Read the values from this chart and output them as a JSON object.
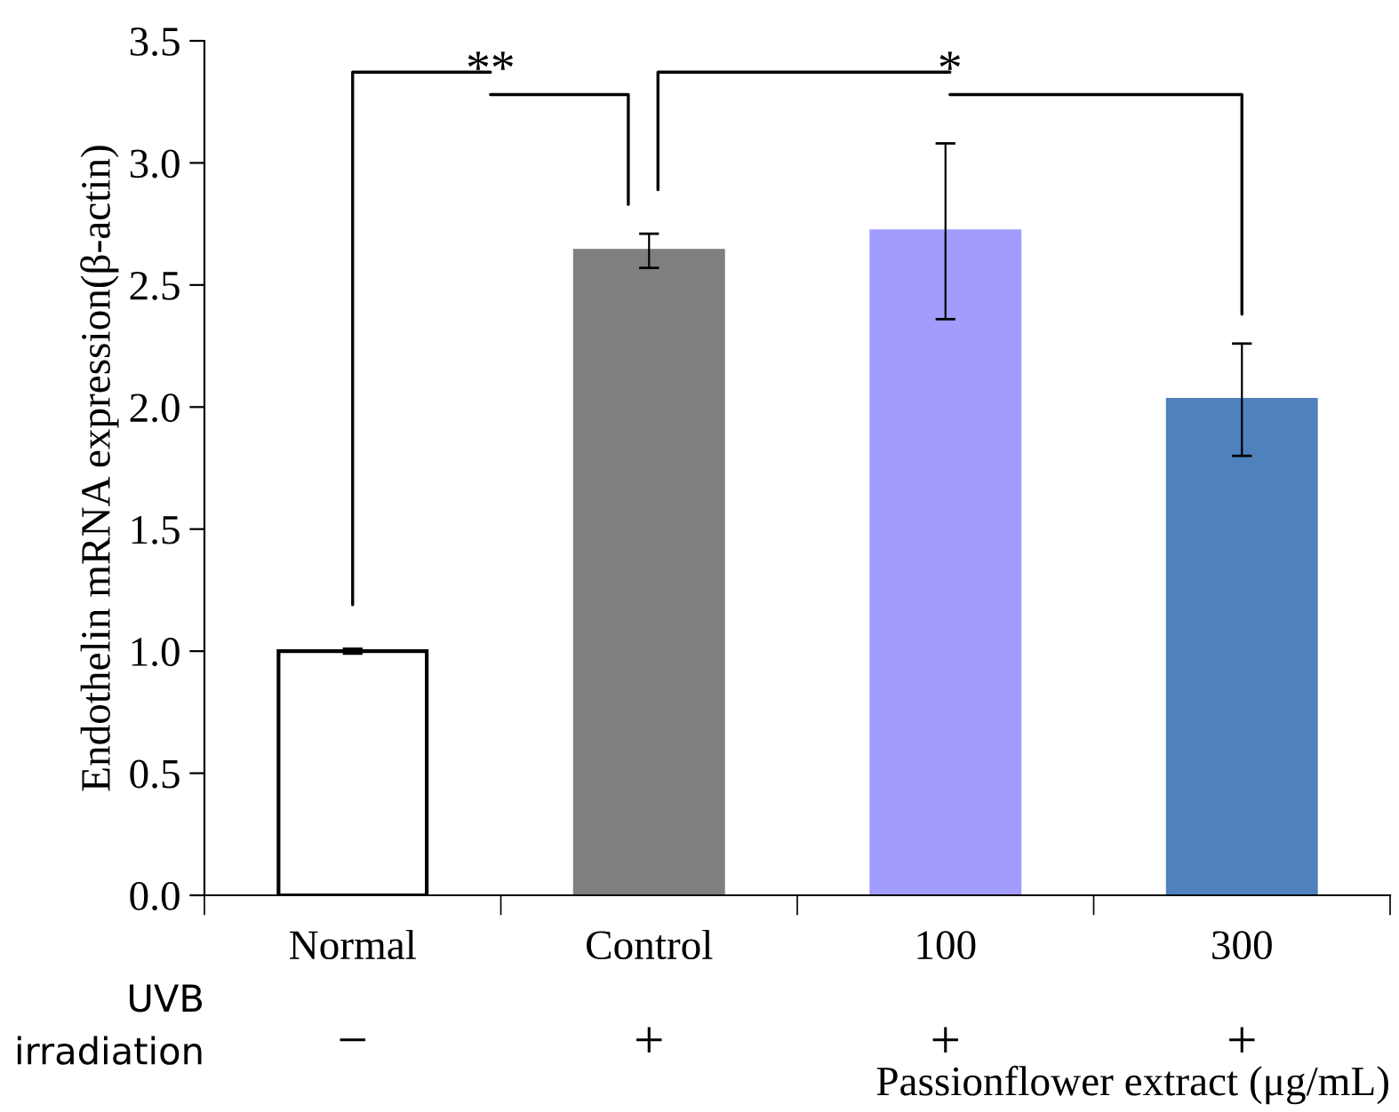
{
  "chart_data": {
    "type": "bar",
    "ylabel": "Endothelin mRNA expression(β-actin)",
    "categories": [
      "Normal",
      "Control",
      "100",
      "300"
    ],
    "values": [
      1.0,
      2.64,
      2.72,
      2.03
    ],
    "colors": [
      "#ffffff",
      "#7f7f7f",
      "#a29cfc",
      "#4f81bd"
    ],
    "errors": [
      0.01,
      0.07,
      0.36,
      0.23
    ],
    "ylim": [
      0,
      3.5
    ],
    "yticks": [
      {
        "value": 0,
        "label": "0.0"
      },
      {
        "value": 0.5,
        "label": "0.5"
      },
      {
        "value": 1,
        "label": "1.0"
      },
      {
        "value": 1.5,
        "label": "1.5"
      },
      {
        "value": 2,
        "label": "2.0"
      },
      {
        "value": 2.5,
        "label": "2.5"
      },
      {
        "value": 3,
        "label": "3.0"
      },
      {
        "value": 3.5,
        "label": "3.5"
      }
    ],
    "grid": false,
    "legend": false,
    "annotations": [
      "**",
      "*",
      "UVB\nirradiation",
      "−",
      "+",
      "+",
      "+",
      "Passionflower extract (μg/mL)"
    ]
  }
}
